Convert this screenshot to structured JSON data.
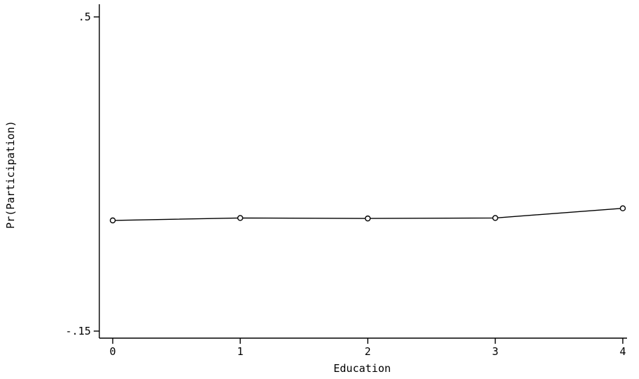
{
  "chart_data": {
    "type": "line",
    "title": "",
    "xlabel": "Education",
    "ylabel": "Pr(Participation)",
    "x": [
      0,
      1,
      2,
      3,
      4
    ],
    "x_tick_labels": [
      "0",
      "1",
      "2",
      "3",
      "4"
    ],
    "y_tick_labels": [
      ".5",
      "-.15"
    ],
    "y_ticks": [
      0.5,
      -0.15
    ],
    "xlim": [
      0,
      4
    ],
    "ylim": [
      -0.15,
      0.5
    ],
    "series": [
      {
        "values": [
          0.079,
          0.084,
          0.083,
          0.084,
          0.104
        ],
        "marker": "hollow-circle"
      }
    ],
    "grid": false,
    "legend": "none",
    "colors": {
      "line": "#000000",
      "background": "#ffffff"
    }
  }
}
